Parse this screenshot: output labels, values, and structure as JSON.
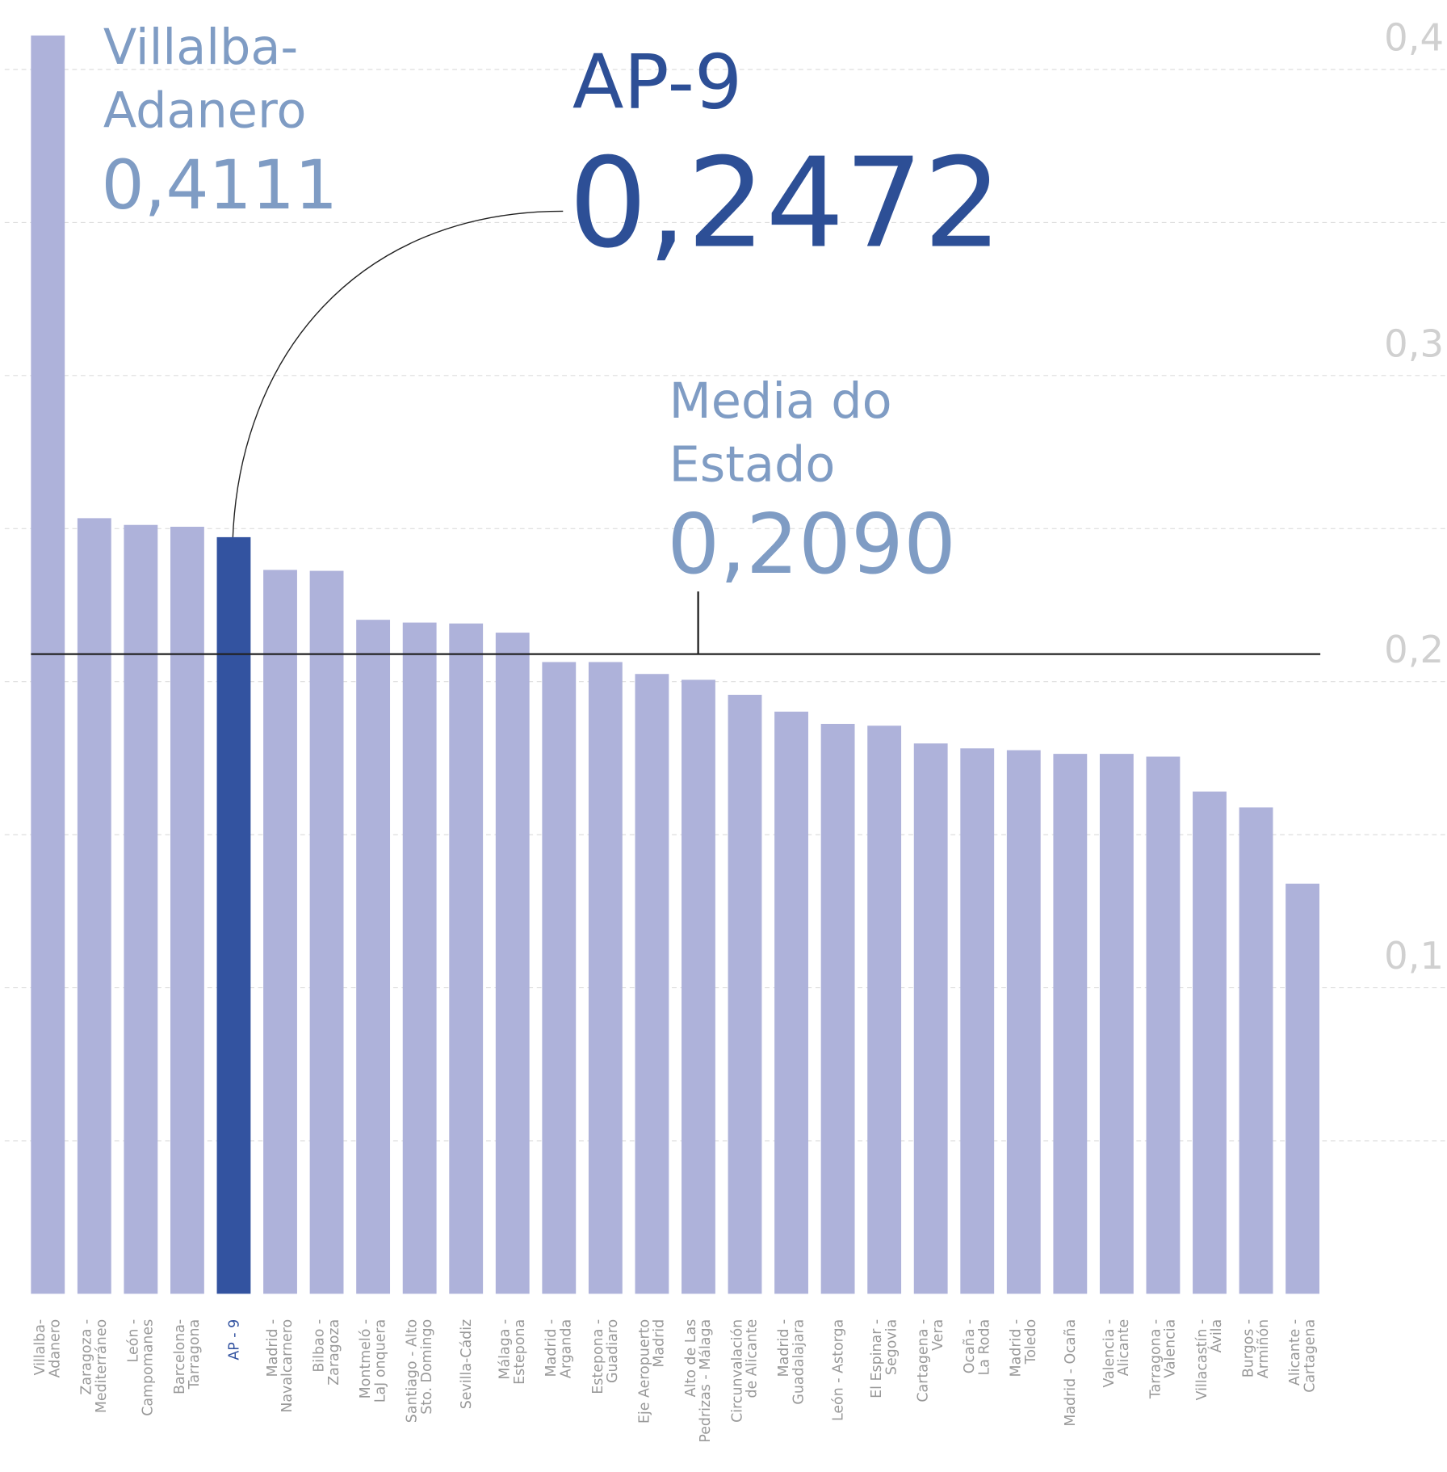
{
  "chart_data": {
    "type": "bar",
    "categories": [
      "Villalba-\nAdanero",
      "Zaragoza -\nMediterráneo",
      "León -\nCampomanes",
      "Barcelona-\nTarragona",
      "AP - 9",
      "Madrid -\nNavalcarnero",
      "Bilbao -\nZaragoza",
      "Montmeló -\nLaJ onquera",
      "Santiago - Alto\nSto. Domingo",
      "Sevilla-Cádiz",
      "Málaga -\nEstepona",
      "Madrid -\nArganda",
      "Estepona -\nGuadiaro",
      "Eje Aeropuerto\nMadrid",
      "Alto de Las\nPedrizas - Málaga",
      "Circunvalación\nde Alicante",
      "Madrid -\nGuadalajara",
      "León - Astorga",
      "El Espinar -\nSegovia",
      "Cartagena -\nVera",
      "Ocaña -\nLa Roda",
      "Madrid -\nToledo",
      "Madrid - Ocaña",
      "Valencia -\nAlicante",
      "Tarragona -\nValencia",
      "Villacastín -\nÁvila",
      "Burgos -\nArmiñón",
      "Alicante -\nCartagena"
    ],
    "values": [
      0.4111,
      0.2534,
      0.2512,
      0.2506,
      0.2472,
      0.2365,
      0.2362,
      0.2202,
      0.2193,
      0.219,
      0.216,
      0.2064,
      0.2064,
      0.2025,
      0.2006,
      0.1957,
      0.1902,
      0.1862,
      0.1856,
      0.1798,
      0.1782,
      0.1776,
      0.1764,
      0.1764,
      0.1755,
      0.1641,
      0.1589,
      0.134
    ],
    "colors": [
      "#aeb2da",
      "#aeb2da",
      "#aeb2da",
      "#aeb2da",
      "#3353a0",
      "#aeb2da",
      "#aeb2da",
      "#aeb2da",
      "#aeb2da",
      "#aeb2da",
      "#aeb2da",
      "#aeb2da",
      "#aeb2da",
      "#aeb2da",
      "#aeb2da",
      "#aeb2da",
      "#aeb2da",
      "#aeb2da",
      "#aeb2da",
      "#aeb2da",
      "#aeb2da",
      "#aeb2da",
      "#aeb2da",
      "#aeb2da",
      "#aeb2da",
      "#aeb2da",
      "#aeb2da",
      "#aeb2da"
    ],
    "ylim": [
      0,
      0.42
    ],
    "yticks": [
      {
        "value": 0.1,
        "label": "0,1"
      },
      {
        "value": 0.2,
        "label": "0,2"
      },
      {
        "value": 0.3,
        "label": "0,3"
      },
      {
        "value": 0.4,
        "label": "0,4"
      }
    ],
    "minor_yticks": [
      0.05,
      0.15,
      0.25,
      0.35
    ],
    "grid": true,
    "annotations": [
      {
        "label": "Villalba-\nAdanero",
        "value_label": "0,4111"
      },
      {
        "label": "AP-9",
        "value_label": "0,2472"
      }
    ],
    "mean": {
      "label": "Media do\nEstado",
      "value": 0.209,
      "value_label": "0,2090"
    }
  }
}
